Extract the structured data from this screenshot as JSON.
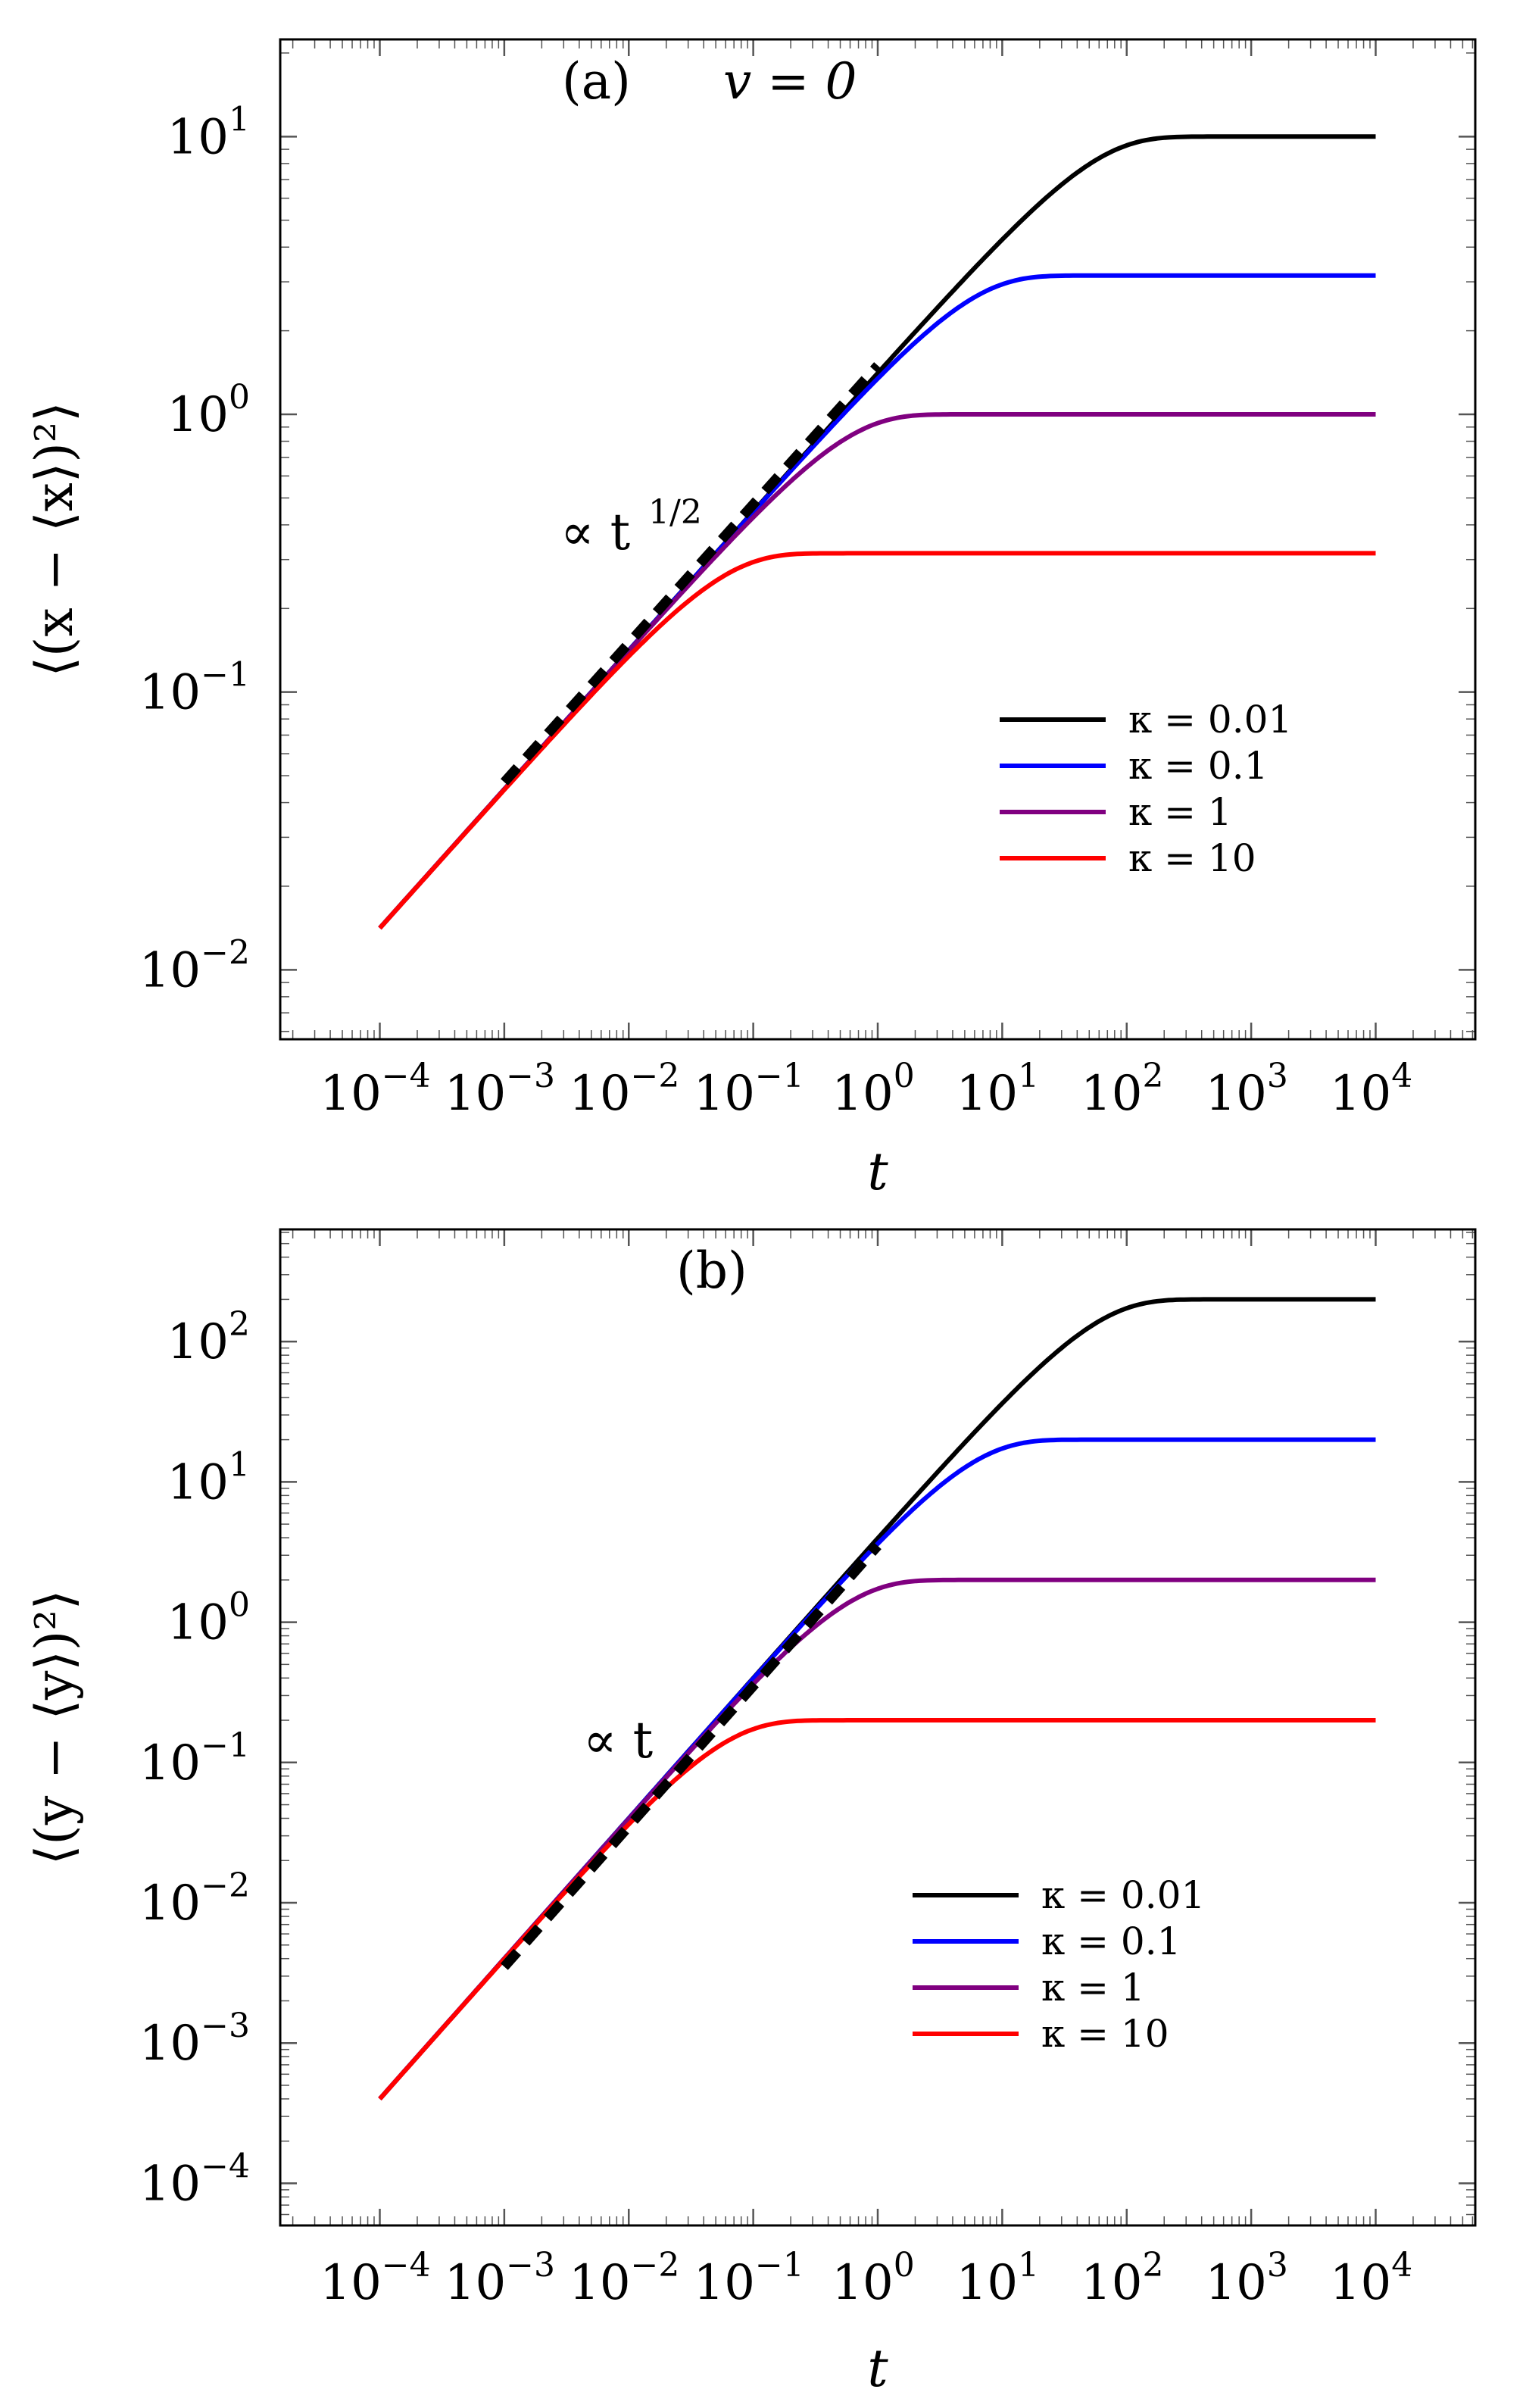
{
  "chart_data": [
    {
      "type": "line",
      "panel_label": "(a)",
      "title": "v = 0",
      "xlabel": "t",
      "ylabel": "⟨(x − ⟨x⟩)²⟩",
      "xscale": "log",
      "yscale": "log",
      "xlim_exp": [
        -4.8,
        4.8
      ],
      "ylim_exp": [
        -2.25,
        1.35
      ],
      "xtick_exps": [
        -4,
        -3,
        -2,
        -1,
        0,
        1,
        2,
        3,
        4
      ],
      "ytick_exps": [
        -2,
        -1,
        0,
        1
      ],
      "tick_base": "10",
      "legend_position": "center-right",
      "reference_line": {
        "label": "∝ t",
        "label_exp": "1/2",
        "from": [
          0.001,
          0.0474
        ],
        "to": [
          1.0,
          1.5
        ]
      },
      "series": [
        {
          "name": "κ = 0.01",
          "color": "#000000",
          "kappa": 0.01,
          "x_start": 0.0001,
          "x_end": 10000,
          "plateau": 10.0
        },
        {
          "name": "κ = 0.1",
          "color": "#0000ff",
          "kappa": 0.1,
          "x_start": 0.0001,
          "x_end": 10000,
          "plateau": 3.16
        },
        {
          "name": "κ = 1",
          "color": "#800080",
          "kappa": 1,
          "x_start": 0.0001,
          "x_end": 10000,
          "plateau": 1.0
        },
        {
          "name": "κ = 10",
          "color": "#ff0000",
          "kappa": 10,
          "x_start": 0.0001,
          "x_end": 10000,
          "plateau": 0.316
        }
      ],
      "curve_model": "y = plateau * (1 - exp(-2*kappa*t))^0.5"
    },
    {
      "type": "line",
      "panel_label": "(b)",
      "title": "",
      "xlabel": "t",
      "ylabel": "⟨(y − ⟨y⟩)²⟩",
      "xscale": "log",
      "yscale": "log",
      "xlim_exp": [
        -4.8,
        4.8
      ],
      "ylim_exp": [
        -4.3,
        2.8
      ],
      "xtick_exps": [
        -4,
        -3,
        -2,
        -1,
        0,
        1,
        2,
        3,
        4
      ],
      "ytick_exps": [
        -4,
        -3,
        -2,
        -1,
        0,
        1,
        2
      ],
      "tick_base": "10",
      "legend_position": "lower-right",
      "reference_line": {
        "label": "∝ t",
        "label_exp": "",
        "from": [
          0.001,
          0.0035
        ],
        "to": [
          1.0,
          3.5
        ]
      },
      "series": [
        {
          "name": "κ = 0.01",
          "color": "#000000",
          "kappa": 0.01,
          "x_start": 0.0001,
          "x_end": 10000,
          "plateau": 200.0
        },
        {
          "name": "κ = 0.1",
          "color": "#0000ff",
          "kappa": 0.1,
          "x_start": 0.0001,
          "x_end": 10000,
          "plateau": 20.0
        },
        {
          "name": "κ = 1",
          "color": "#800080",
          "kappa": 1,
          "x_start": 0.0001,
          "x_end": 10000,
          "plateau": 2.0
        },
        {
          "name": "κ = 10",
          "color": "#ff0000",
          "kappa": 10,
          "x_start": 0.0001,
          "x_end": 10000,
          "plateau": 0.2
        }
      ],
      "curve_model": "y = plateau * (1 - exp(-2*kappa*t))"
    }
  ]
}
